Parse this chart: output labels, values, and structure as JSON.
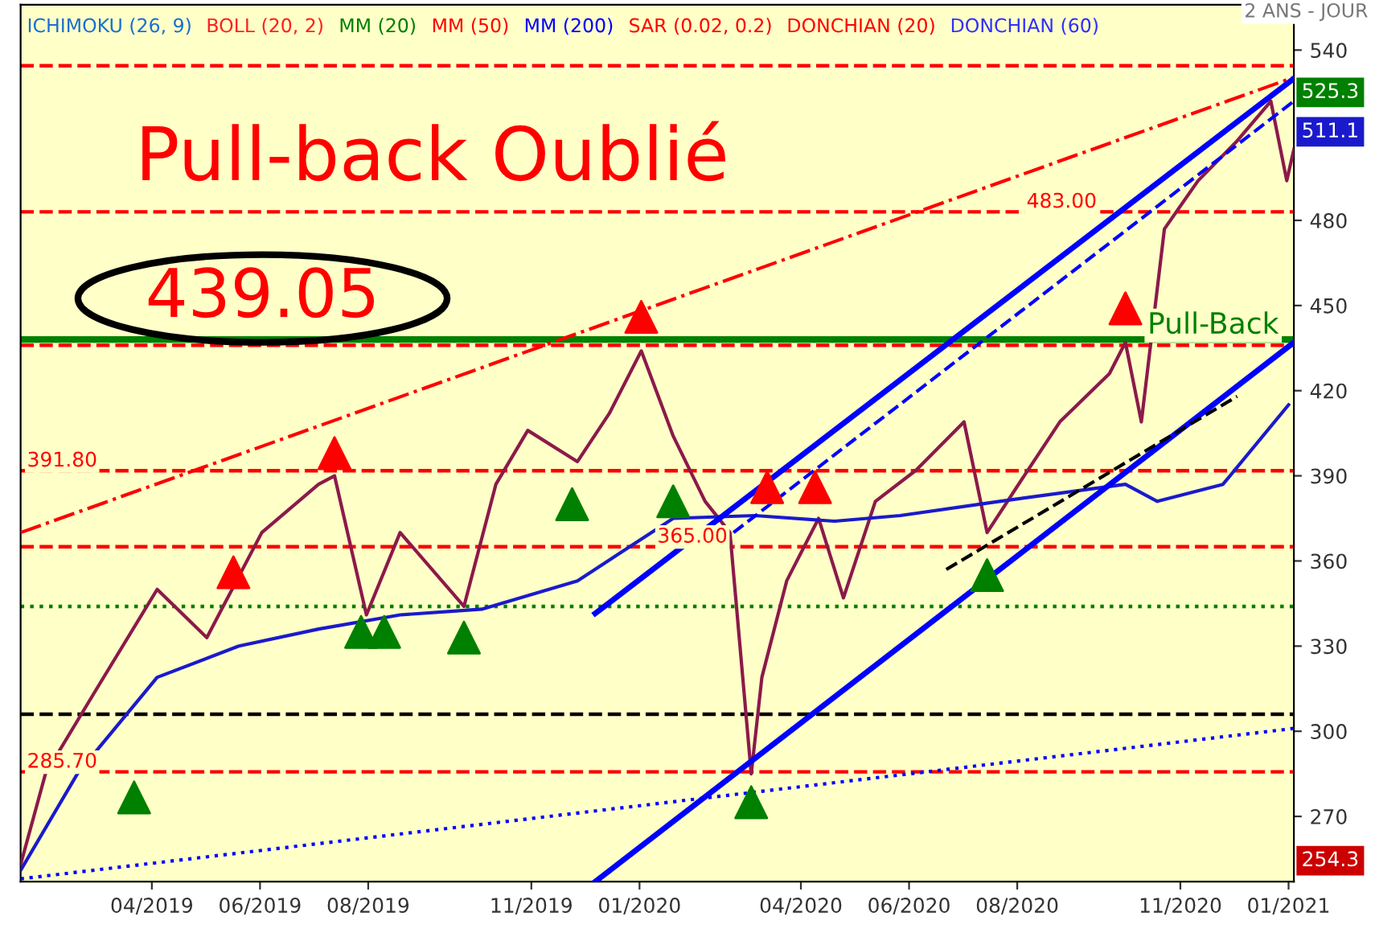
{
  "chart_data": {
    "type": "line",
    "xlim": [
      "2019-01-17",
      "2021-01-04"
    ],
    "ylim": [
      247,
      556
    ],
    "yticks": [
      270,
      300,
      330,
      360,
      390,
      420,
      450,
      480,
      540
    ],
    "xticks": [
      {
        "value": "2019-04-01",
        "label": "04/2019"
      },
      {
        "value": "2019-06-01",
        "label": "06/2019"
      },
      {
        "value": "2019-08-01",
        "label": "08/2019"
      },
      {
        "value": "2019-11-01",
        "label": "11/2019"
      },
      {
        "value": "2020-01-01",
        "label": "01/2020"
      },
      {
        "value": "2020-04-01",
        "label": "04/2020"
      },
      {
        "value": "2020-06-01",
        "label": "06/2020"
      },
      {
        "value": "2020-08-01",
        "label": "08/2020"
      },
      {
        "value": "2020-11-01",
        "label": "11/2020"
      },
      {
        "value": "2021-01-01",
        "label": "01/2021"
      }
    ],
    "series": [
      {
        "type": "line",
        "color": "#8b1a4a",
        "line_style": "solid",
        "x": [
          "2019-01-17",
          "2019-01-31",
          "2019-02-27",
          "2019-04-04",
          "2019-05-02",
          "2019-06-02",
          "2019-07-04",
          "2019-07-13",
          "2019-07-31",
          "2019-08-19",
          "2019-09-24",
          "2019-10-12",
          "2019-10-30",
          "2019-11-27",
          "2019-12-15",
          "2020-01-02",
          "2020-01-20",
          "2020-02-07",
          "2020-02-21",
          "2020-03-04",
          "2020-03-10",
          "2020-03-24",
          "2020-04-11",
          "2020-04-25",
          "2020-05-13",
          "2020-06-05",
          "2020-07-02",
          "2020-07-15",
          "2020-08-07",
          "2020-08-25",
          "2020-09-22",
          "2020-10-01",
          "2020-10-10",
          "2020-10-23",
          "2020-11-11",
          "2020-12-03",
          "2020-12-22",
          "2020-12-31",
          "2021-01-04"
        ],
        "values": [
          253,
          285,
          313,
          350,
          333,
          370,
          387,
          390,
          341,
          370,
          344,
          387,
          406,
          395,
          412,
          434,
          404,
          381,
          370,
          285,
          319,
          353,
          375,
          347,
          381,
          392,
          409,
          370,
          392,
          409,
          426,
          437,
          409,
          477,
          494,
          508,
          522,
          494,
          505
        ]
      },
      {
        "type": "line",
        "color": "#1a1acc",
        "line_style": "solid",
        "x": [
          "2019-01-17",
          "2019-02-18",
          "2019-04-04",
          "2019-05-20",
          "2019-07-04",
          "2019-08-19",
          "2019-10-04",
          "2019-11-27",
          "2020-01-20",
          "2020-03-06",
          "2020-04-20",
          "2020-05-27",
          "2020-07-22",
          "2020-10-01",
          "2020-10-19",
          "2020-11-25",
          "2021-01-01"
        ],
        "values": [
          251,
          285,
          319,
          330,
          336,
          341,
          343,
          353,
          375,
          376,
          374,
          376,
          381,
          387,
          381,
          387,
          415
        ]
      },
      {
        "type": "line",
        "color": "#ff0000",
        "line_style": "dashdot",
        "x": [
          "2019-01-17",
          "2021-01-04"
        ],
        "values": [
          370,
          530.4
        ]
      },
      {
        "type": "line",
        "color": "#0000ff",
        "line_style": "solid",
        "x": [
          "2019-12-07",
          "2021-01-04"
        ],
        "values": [
          341.5,
          530
        ]
      },
      {
        "type": "line",
        "color": "#0000ff",
        "line_style": "solid",
        "x": [
          "2019-12-07",
          "2021-01-04"
        ],
        "values": [
          247,
          437
        ]
      },
      {
        "type": "line",
        "color": "#0000ff",
        "line_style": "dashed",
        "x": [
          "2020-02-23",
          "2021-01-04"
        ],
        "values": [
          370,
          522
        ]
      },
      {
        "type": "line",
        "color": "#000000",
        "line_style": "dashed",
        "x": [
          "2020-06-22",
          "2020-12-03"
        ],
        "values": [
          357,
          418
        ]
      },
      {
        "type": "line",
        "color": "#0000ff",
        "line_style": "dotted",
        "x": [
          "2019-01-17",
          "2021-01-04"
        ],
        "values": [
          248,
          301
        ]
      },
      {
        "type": "scatter",
        "color": "#ff0000",
        "marker": "triangle",
        "x": [
          "2019-05-17",
          "2019-07-13",
          "2020-01-02",
          "2020-03-13",
          "2020-04-09",
          "2020-10-01"
        ],
        "values": [
          356,
          398,
          446,
          386,
          386,
          449
        ]
      },
      {
        "type": "scatter",
        "color": "#008000",
        "marker": "triangle",
        "x": [
          "2019-03-22",
          "2019-07-28",
          "2019-08-10",
          "2019-09-24",
          "2019-11-24",
          "2020-01-20",
          "2020-03-04",
          "2020-07-15"
        ],
        "values": [
          276.7,
          335,
          335,
          333,
          380,
          381,
          275,
          355
        ]
      }
    ],
    "ref_lines": [
      {
        "axis": "y",
        "value": 534.5,
        "color": "#ff0000",
        "line_style": "dashed"
      },
      {
        "axis": "y",
        "value": 483,
        "label": "483.00",
        "color": "#ff0000",
        "line_style": "dashed"
      },
      {
        "axis": "y",
        "value": 436,
        "color": "#ff0000",
        "line_style": "dashed"
      },
      {
        "axis": "y",
        "value": 438,
        "label": "Pull-Back",
        "color": "#008000",
        "line_style": "solid"
      },
      {
        "axis": "y",
        "value": 391.8,
        "label": "391.80",
        "color": "#ff0000",
        "line_style": "dashed"
      },
      {
        "axis": "y",
        "value": 365,
        "label": "365.00",
        "color": "#ff0000",
        "line_style": "dashed"
      },
      {
        "axis": "y",
        "value": 344,
        "color": "#008000",
        "line_style": "dotted"
      },
      {
        "axis": "y",
        "value": 306,
        "color": "#000000",
        "line_style": "dashed"
      },
      {
        "axis": "y",
        "value": 285.7,
        "label": "285.70",
        "color": "#ff0000",
        "line_style": "dashed"
      }
    ],
    "annotations": [
      "ICHIMOKU (26, 9)",
      "BOLL (20, 2)",
      "MM (20)",
      "MM (50)",
      "MM (200)",
      "SAR (0.02, 0.2)",
      "DONCHIAN (20)",
      "DONCHIAN (60)",
      "2 ANS - JOUR",
      "Pull-back Oublié",
      "439.05",
      "525.3",
      "511.1",
      "254.3"
    ],
    "grid": false
  }
}
